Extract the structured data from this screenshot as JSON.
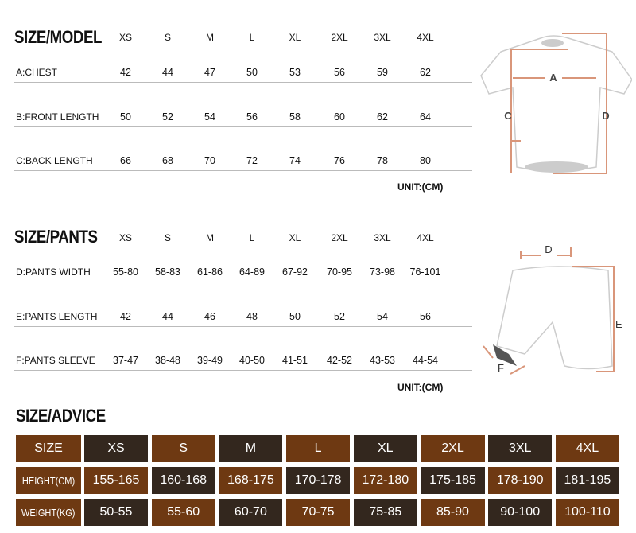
{
  "jersey": {
    "title": "SIZE/MODEL",
    "sizes": [
      "XS",
      "S",
      "M",
      "L",
      "XL",
      "2XL",
      "3XL",
      "4XL"
    ],
    "rows": [
      {
        "label": "A:CHEST",
        "values": [
          "42",
          "44",
          "47",
          "50",
          "53",
          "56",
          "59",
          "62"
        ]
      },
      {
        "label": "B:FRONT LENGTH",
        "values": [
          "50",
          "52",
          "54",
          "56",
          "58",
          "60",
          "62",
          "64"
        ]
      },
      {
        "label": "C:BACK LENGTH",
        "values": [
          "66",
          "68",
          "70",
          "72",
          "74",
          "76",
          "78",
          "80"
        ]
      }
    ],
    "unit": "UNIT:(CM)",
    "diagram_labels": [
      "A",
      "C",
      "D"
    ]
  },
  "pants": {
    "title": "SIZE/PANTS",
    "sizes": [
      "XS",
      "S",
      "M",
      "L",
      "XL",
      "2XL",
      "3XL",
      "4XL"
    ],
    "rows": [
      {
        "label": "D:PANTS WIDTH",
        "values": [
          "55-80",
          "58-83",
          "61-86",
          "64-89",
          "67-92",
          "70-95",
          "73-98",
          "76-101"
        ]
      },
      {
        "label": "E:PANTS LENGTH",
        "values": [
          "42",
          "44",
          "46",
          "48",
          "50",
          "52",
          "54",
          "56"
        ]
      },
      {
        "label": "F:PANTS SLEEVE",
        "values": [
          "37-47",
          "38-48",
          "39-49",
          "40-50",
          "41-51",
          "42-52",
          "43-53",
          "44-54"
        ]
      }
    ],
    "unit": "UNIT:(CM)",
    "diagram_labels": [
      "D",
      "E",
      "F"
    ]
  },
  "advice": {
    "title": "SIZE/ADVICE",
    "colors": {
      "brown": "#6e3912",
      "dark": "#33271e"
    },
    "rows": [
      {
        "label": "SIZE",
        "values": [
          "XS",
          "S",
          "M",
          "L",
          "XL",
          "2XL",
          "3XL",
          "4XL"
        ]
      },
      {
        "label": "HEIGHT(CM)",
        "values": [
          "155-165",
          "160-168",
          "168-175",
          "170-178",
          "172-180",
          "175-185",
          "178-190",
          "181-195"
        ]
      },
      {
        "label": "WEIGHT(KG)",
        "values": [
          "50-55",
          "55-60",
          "60-70",
          "70-75",
          "75-85",
          "85-90",
          "90-100",
          "100-110"
        ]
      }
    ]
  }
}
